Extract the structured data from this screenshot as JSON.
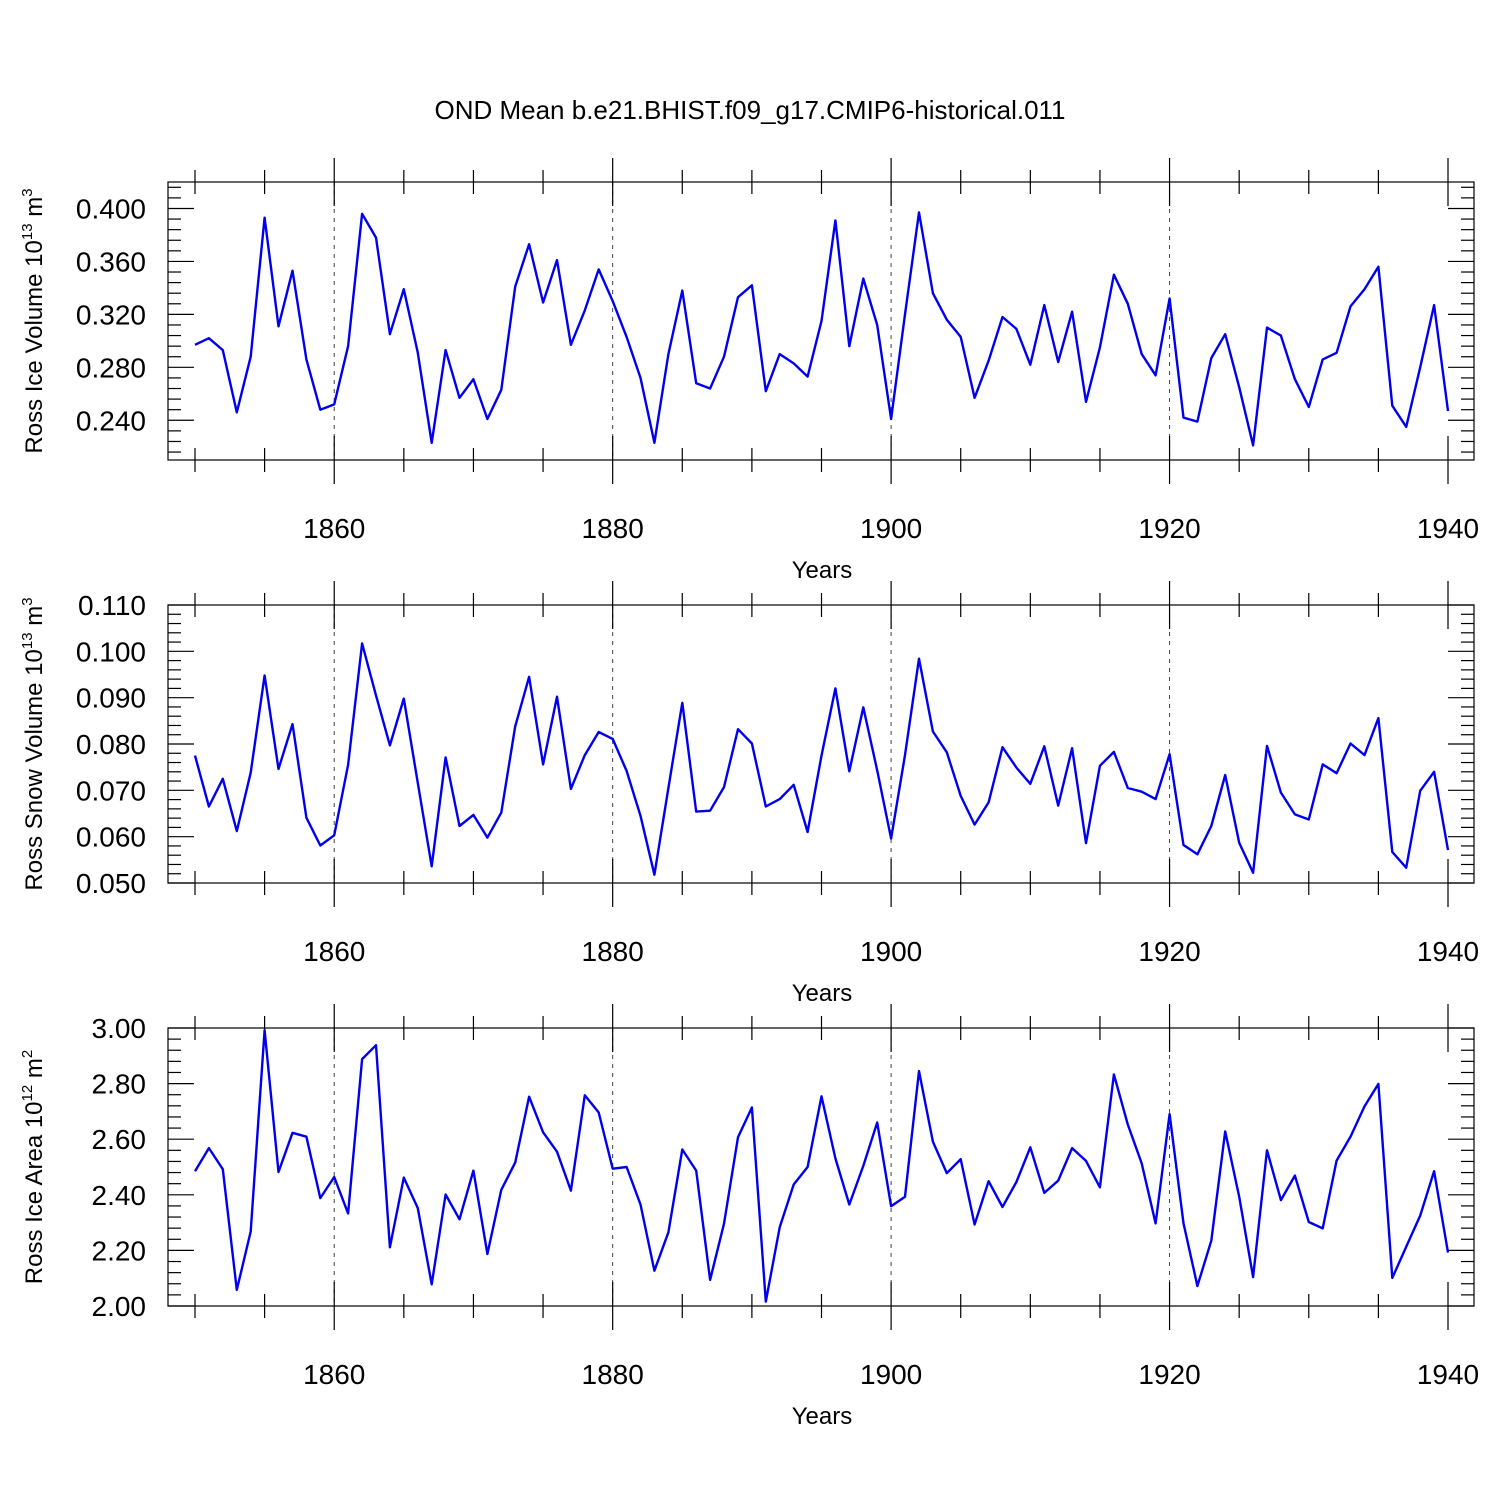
{
  "figure": {
    "title": "OND Mean b.e21.BHIST.f09_g17.CMIP6-historical.011",
    "line_color": "#0000ee"
  },
  "chart_data": [
    {
      "type": "line",
      "ylabel_main": "Ross Ice Volume 10",
      "ylabel_sup": "13",
      "ylabel_unit": " m",
      "ylabel_unit_sup": "3",
      "xlabel": "Years",
      "xlim": [
        1850,
        1940
      ],
      "ylim": [
        0.21,
        0.42
      ],
      "x_ticks": [
        1860,
        1880,
        1900,
        1920,
        1940
      ],
      "x_tick_labels": [
        "1860",
        "1880",
        "1900",
        "1920",
        "1940"
      ],
      "y_ticks": [
        0.24,
        0.28,
        0.32,
        0.36,
        0.4
      ],
      "y_tick_labels": [
        "0.240",
        "0.280",
        "0.320",
        "0.360",
        "0.400"
      ],
      "x_start": 1850,
      "values": [
        0.297,
        0.302,
        0.293,
        0.246,
        0.288,
        0.393,
        0.311,
        0.353,
        0.286,
        0.248,
        0.252,
        0.296,
        0.396,
        0.378,
        0.305,
        0.339,
        0.291,
        0.223,
        0.293,
        0.257,
        0.271,
        0.241,
        0.263,
        0.341,
        0.373,
        0.329,
        0.361,
        0.297,
        0.323,
        0.354,
        0.33,
        0.303,
        0.272,
        0.223,
        0.29,
        0.338,
        0.268,
        0.264,
        0.288,
        0.333,
        0.342,
        0.262,
        0.29,
        0.283,
        0.273,
        0.315,
        0.391,
        0.296,
        0.347,
        0.312,
        0.241,
        0.32,
        0.397,
        0.336,
        0.316,
        0.303,
        0.257,
        0.285,
        0.318,
        0.309,
        0.282,
        0.327,
        0.284,
        0.322,
        0.254,
        0.295,
        0.35,
        0.328,
        0.29,
        0.274,
        0.332,
        0.242,
        0.239,
        0.287,
        0.305,
        0.265,
        0.221,
        0.31,
        0.304,
        0.271,
        0.25,
        0.286,
        0.291,
        0.326,
        0.339,
        0.356,
        0.251,
        0.235,
        0.28,
        0.327,
        0.247
      ]
    },
    {
      "type": "line",
      "ylabel_main": "Ross Snow Volume 10",
      "ylabel_sup": "13",
      "ylabel_unit": " m",
      "ylabel_unit_sup": "3",
      "xlabel": "Years",
      "xlim": [
        1850,
        1940
      ],
      "ylim": [
        0.05,
        0.11
      ],
      "x_ticks": [
        1860,
        1880,
        1900,
        1920,
        1940
      ],
      "x_tick_labels": [
        "1860",
        "1880",
        "1900",
        "1920",
        "1940"
      ],
      "y_ticks": [
        0.05,
        0.06,
        0.07,
        0.08,
        0.09,
        0.1,
        0.11
      ],
      "y_tick_labels": [
        "0.050",
        "0.060",
        "0.070",
        "0.080",
        "0.090",
        "0.100",
        "0.110"
      ],
      "x_start": 1850,
      "values": [
        0.0775,
        0.0665,
        0.0725,
        0.0612,
        0.0738,
        0.0948,
        0.0746,
        0.0843,
        0.0641,
        0.0581,
        0.0603,
        0.0755,
        0.1017,
        0.0905,
        0.0797,
        0.0898,
        0.0716,
        0.0536,
        0.0771,
        0.0623,
        0.0647,
        0.0598,
        0.0652,
        0.0838,
        0.0945,
        0.0756,
        0.0902,
        0.0703,
        0.0776,
        0.0826,
        0.0811,
        0.0742,
        0.0645,
        0.0518,
        0.0705,
        0.0889,
        0.0654,
        0.0656,
        0.0707,
        0.0832,
        0.0801,
        0.0665,
        0.0681,
        0.0712,
        0.061,
        0.0775,
        0.092,
        0.0741,
        0.0879,
        0.0743,
        0.0596,
        0.0776,
        0.0984,
        0.0827,
        0.0782,
        0.0688,
        0.0626,
        0.0674,
        0.0793,
        0.0749,
        0.0714,
        0.0795,
        0.0667,
        0.0791,
        0.0586,
        0.0753,
        0.0783,
        0.0705,
        0.0697,
        0.0681,
        0.0778,
        0.0582,
        0.0562,
        0.0623,
        0.0733,
        0.0587,
        0.0522,
        0.0796,
        0.0695,
        0.0648,
        0.0637,
        0.0756,
        0.0737,
        0.0801,
        0.0776,
        0.0856,
        0.0567,
        0.0533,
        0.0699,
        0.074,
        0.0571
      ]
    },
    {
      "type": "line",
      "ylabel_main": "Ross Ice Area 10",
      "ylabel_sup": "12",
      "ylabel_unit": " m",
      "ylabel_unit_sup": "2",
      "xlabel": "Years",
      "xlim": [
        1850,
        1940
      ],
      "ylim": [
        2.0,
        3.0
      ],
      "x_ticks": [
        1860,
        1880,
        1900,
        1920,
        1940
      ],
      "x_tick_labels": [
        "1860",
        "1880",
        "1900",
        "1920",
        "1940"
      ],
      "y_ticks": [
        2.0,
        2.2,
        2.4,
        2.6,
        2.8,
        3.0
      ],
      "y_tick_labels": [
        "2.00",
        "2.20",
        "2.40",
        "2.60",
        "2.80",
        "3.00"
      ],
      "x_start": 1850,
      "values": [
        2.485,
        2.568,
        2.492,
        2.058,
        2.268,
        2.992,
        2.482,
        2.623,
        2.609,
        2.388,
        2.464,
        2.333,
        2.888,
        2.938,
        2.211,
        2.462,
        2.352,
        2.078,
        2.401,
        2.312,
        2.487,
        2.187,
        2.418,
        2.516,
        2.753,
        2.625,
        2.555,
        2.415,
        2.758,
        2.696,
        2.494,
        2.5,
        2.365,
        2.127,
        2.265,
        2.563,
        2.487,
        2.094,
        2.296,
        2.607,
        2.714,
        2.016,
        2.283,
        2.437,
        2.5,
        2.754,
        2.531,
        2.365,
        2.504,
        2.66,
        2.359,
        2.393,
        2.845,
        2.591,
        2.478,
        2.528,
        2.293,
        2.449,
        2.356,
        2.446,
        2.571,
        2.407,
        2.451,
        2.568,
        2.522,
        2.427,
        2.833,
        2.653,
        2.513,
        2.297,
        2.69,
        2.298,
        2.072,
        2.235,
        2.628,
        2.393,
        2.104,
        2.56,
        2.381,
        2.469,
        2.302,
        2.279,
        2.523,
        2.609,
        2.718,
        2.799,
        2.101,
        2.213,
        2.325,
        2.485,
        2.192
      ]
    }
  ]
}
